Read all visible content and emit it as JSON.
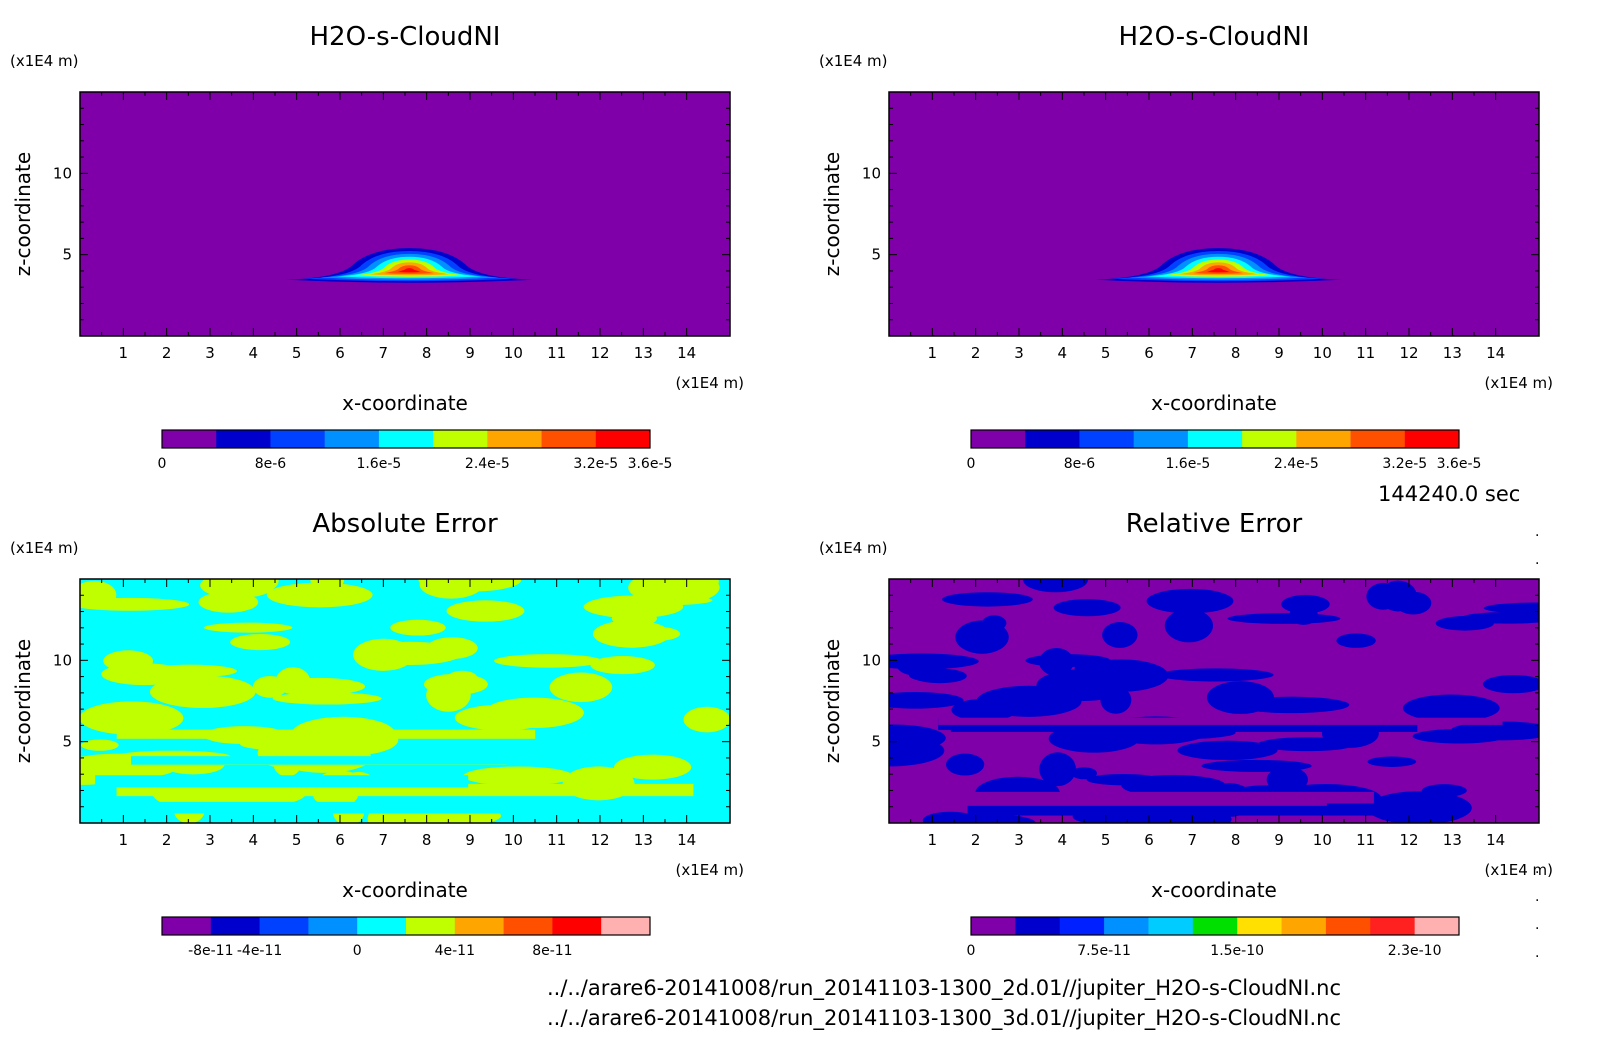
{
  "panels": [
    {
      "title": "H2O-s-CloudNI",
      "scale_label": "(x1E4 m)",
      "x_scale_label": "(x1E4 m)",
      "xlabel": "x-coordinate",
      "ylabel": "z-coordinate",
      "x_ticks": [
        "1",
        "2",
        "3",
        "4",
        "5",
        "6",
        "7",
        "8",
        "9",
        "10",
        "11",
        "12",
        "13",
        "14"
      ],
      "y_ticks": [
        "5",
        "10"
      ],
      "colorbar_labels": [
        {
          "text": "0",
          "value": 0
        },
        {
          "text": "8e-6",
          "value": 8e-06
        },
        {
          "text": "1.6e-5",
          "value": 1.6e-05
        },
        {
          "text": "2.4e-5",
          "value": 2.4e-05
        },
        {
          "text": "3.2e-5",
          "value": 3.2e-05
        },
        {
          "text": "3.6e-5",
          "value": 3.6e-05
        }
      ]
    },
    {
      "title": "H2O-s-CloudNI",
      "scale_label": "(x1E4 m)",
      "x_scale_label": "(x1E4 m)",
      "xlabel": "x-coordinate",
      "ylabel": "z-coordinate",
      "x_ticks": [
        "1",
        "2",
        "3",
        "4",
        "5",
        "6",
        "7",
        "8",
        "9",
        "10",
        "11",
        "12",
        "13",
        "14"
      ],
      "y_ticks": [
        "5",
        "10"
      ],
      "colorbar_labels": [
        {
          "text": "0",
          "value": 0
        },
        {
          "text": "8e-6",
          "value": 8e-06
        },
        {
          "text": "1.6e-5",
          "value": 1.6e-05
        },
        {
          "text": "2.4e-5",
          "value": 2.4e-05
        },
        {
          "text": "3.2e-5",
          "value": 3.2e-05
        },
        {
          "text": "3.6e-5",
          "value": 3.6e-05
        }
      ]
    },
    {
      "title": "Absolute Error",
      "scale_label": "(x1E4 m)",
      "x_scale_label": "(x1E4 m)",
      "xlabel": "x-coordinate",
      "ylabel": "z-coordinate",
      "x_ticks": [
        "1",
        "2",
        "3",
        "4",
        "5",
        "6",
        "7",
        "8",
        "9",
        "10",
        "11",
        "12",
        "13",
        "14"
      ],
      "y_ticks": [
        "5",
        "10"
      ],
      "colorbar_labels": [
        {
          "text": "-8e-11",
          "value": -8e-11
        },
        {
          "text": "-4e-11",
          "value": -4e-11
        },
        {
          "text": "0",
          "value": 0
        },
        {
          "text": "4e-11",
          "value": 4e-11
        },
        {
          "text": "8e-11",
          "value": 8e-11
        }
      ]
    },
    {
      "title": "Relative Error",
      "scale_label": "(x1E4 m)",
      "x_scale_label": "(x1E4 m)",
      "xlabel": "x-coordinate",
      "ylabel": "z-coordinate",
      "x_ticks": [
        "1",
        "2",
        "3",
        "4",
        "5",
        "6",
        "7",
        "8",
        "9",
        "10",
        "11",
        "12",
        "13",
        "14"
      ],
      "y_ticks": [
        "5",
        "10"
      ],
      "colorbar_labels": [
        {
          "text": "0",
          "value": 0
        },
        {
          "text": "7.5e-11",
          "value": 7.5e-11
        },
        {
          "text": "1.5e-10",
          "value": 1.5e-10
        },
        {
          "text": "2.3e-10",
          "value": 2.3e-10
        }
      ]
    }
  ],
  "time_label": "144240.0 sec",
  "file_paths": [
    "../../arare6-20141008/run_20141103-1300_2d.01//jupiter_H2O-s-CloudNI.nc",
    "../../arare6-20141008/run_20141103-1300_3d.01//jupiter_H2O-s-CloudNI.nc"
  ],
  "chart_data": [
    {
      "type": "heatmap",
      "title": "H2O-s-CloudNI",
      "xlabel": "x-coordinate",
      "ylabel": "z-coordinate",
      "x_unit": "(x1E4 m)",
      "y_unit": "(x1E4 m)",
      "xlim": [
        0,
        15
      ],
      "ylim": [
        0,
        15
      ],
      "levels": [
        0,
        4e-06,
        8e-06,
        1.2e-05,
        1.6e-05,
        2e-05,
        2.4e-05,
        2.8e-05,
        3.2e-05,
        3.6e-05
      ],
      "colors": [
        "#7f00a8",
        "#0000cc",
        "#0040ff",
        "#0090ff",
        "#00ffff",
        "#c0ff00",
        "#ffa500",
        "#ff5000",
        "#ff0000"
      ],
      "feature": {
        "shape": "dome",
        "x_center": 7.6,
        "z_center": 4.0,
        "x_extent": [
          4.7,
          10.4
        ],
        "z_extent": [
          3.4,
          5.4
        ],
        "peak": 3.6e-05
      }
    },
    {
      "type": "heatmap",
      "title": "H2O-s-CloudNI",
      "xlabel": "x-coordinate",
      "ylabel": "z-coordinate",
      "x_unit": "(x1E4 m)",
      "y_unit": "(x1E4 m)",
      "xlim": [
        0,
        15
      ],
      "ylim": [
        0,
        15
      ],
      "levels": [
        0,
        4e-06,
        8e-06,
        1.2e-05,
        1.6e-05,
        2e-05,
        2.4e-05,
        2.8e-05,
        3.2e-05,
        3.6e-05
      ],
      "colors": [
        "#7f00a8",
        "#0000cc",
        "#0040ff",
        "#0090ff",
        "#00ffff",
        "#c0ff00",
        "#ffa500",
        "#ff5000",
        "#ff0000"
      ],
      "feature": {
        "shape": "dome",
        "x_center": 7.6,
        "z_center": 4.0,
        "x_extent": [
          4.7,
          10.4
        ],
        "z_extent": [
          3.4,
          5.4
        ],
        "peak": 3.6e-05
      }
    },
    {
      "type": "heatmap",
      "title": "Absolute Error",
      "xlabel": "x-coordinate",
      "ylabel": "z-coordinate",
      "x_unit": "(x1E4 m)",
      "y_unit": "(x1E4 m)",
      "xlim": [
        0,
        15
      ],
      "ylim": [
        0,
        15
      ],
      "levels": [
        -1.2e-10,
        -8e-11,
        -4e-11,
        -2e-11,
        0,
        2e-11,
        4e-11,
        6e-11,
        8e-11,
        1e-10,
        1.2e-10
      ],
      "colors": [
        "#7f00a8",
        "#0000cc",
        "#0040ff",
        "#0090ff",
        "#00ffff",
        "#c0ff00",
        "#ffa500",
        "#ff5000",
        "#ff0000",
        "#ffb0b0"
      ],
      "present_levels": [
        "#00ffff",
        "#c0ff00"
      ]
    },
    {
      "type": "heatmap",
      "title": "Relative Error",
      "xlabel": "x-coordinate",
      "ylabel": "z-coordinate",
      "x_unit": "(x1E4 m)",
      "y_unit": "(x1E4 m)",
      "xlim": [
        0,
        15
      ],
      "ylim": [
        0,
        15
      ],
      "levels": [
        0,
        2.5e-11,
        5e-11,
        7.5e-11,
        1e-10,
        1.25e-10,
        1.5e-10,
        1.75e-10,
        2e-10,
        2.25e-10,
        2.3e-10,
        2.4e-10
      ],
      "colors": [
        "#7f00a8",
        "#0000cc",
        "#0020ff",
        "#0090ff",
        "#00ccff",
        "#00e000",
        "#ffe000",
        "#ffa500",
        "#ff5000",
        "#ff2020",
        "#ffb0b0"
      ],
      "present_levels": [
        "#7f00a8",
        "#0000cc"
      ]
    }
  ]
}
